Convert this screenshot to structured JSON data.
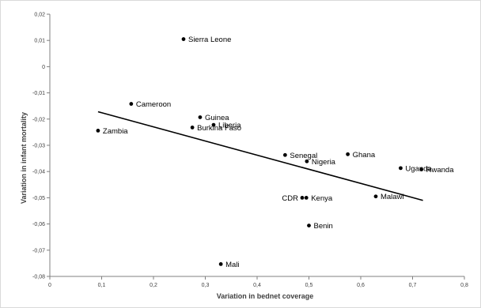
{
  "chart_data": {
    "type": "scatter",
    "xlabel": "Variation in bednet  coverage",
    "ylabel": "Variation in infant mortality",
    "xlim": [
      0,
      0.8
    ],
    "ylim": [
      -0.08,
      0.02
    ],
    "x_ticks": [
      "0",
      "0,1",
      "0,2",
      "0,3",
      "0,4",
      "0,5",
      "0,6",
      "0,7",
      "0,8"
    ],
    "y_ticks": [
      "0,02",
      "0,01",
      "0",
      "-0,01",
      "-0,02",
      "-0,03",
      "-0,04",
      "-0,05",
      "-0,06",
      "-0,07",
      "-0,08"
    ],
    "points": [
      {
        "label": "Sierra Leone",
        "x": 0.258,
        "y": 0.0105,
        "label_side": "right"
      },
      {
        "label": "Cameroon",
        "x": 0.157,
        "y": -0.0142,
        "label_side": "right"
      },
      {
        "label": "Guinea",
        "x": 0.29,
        "y": -0.0193,
        "label_side": "right"
      },
      {
        "label": "Liberia",
        "x": 0.316,
        "y": -0.0222,
        "label_side": "right"
      },
      {
        "label": "Burkina Faso",
        "x": 0.275,
        "y": -0.0232,
        "label_side": "right"
      },
      {
        "label": "Zambia",
        "x": 0.093,
        "y": -0.0244,
        "label_side": "right"
      },
      {
        "label": "Ghana",
        "x": 0.575,
        "y": -0.0334,
        "label_side": "right"
      },
      {
        "label": "Senegal",
        "x": 0.454,
        "y": -0.0337,
        "label_side": "right"
      },
      {
        "label": "Nigeria",
        "x": 0.496,
        "y": -0.0361,
        "label_side": "right"
      },
      {
        "label": "Uganda",
        "x": 0.677,
        "y": -0.0387,
        "label_side": "right"
      },
      {
        "label": "Rwanda",
        "x": 0.717,
        "y": -0.0392,
        "label_side": "right"
      },
      {
        "label": "CDR",
        "x": 0.487,
        "y": -0.05,
        "label_side": "left"
      },
      {
        "label": "Kenya",
        "x": 0.495,
        "y": -0.05,
        "label_side": "right"
      },
      {
        "label": "Malawi",
        "x": 0.629,
        "y": -0.0495,
        "label_side": "right"
      },
      {
        "label": "Benin",
        "x": 0.5,
        "y": -0.0606,
        "label_side": "right"
      },
      {
        "label": "Mali",
        "x": 0.33,
        "y": -0.0753,
        "label_side": "right"
      }
    ],
    "trendline": {
      "x": [
        0.093,
        0.72
      ],
      "y": [
        -0.0172,
        -0.051
      ]
    },
    "grid": false,
    "legend": "none"
  }
}
